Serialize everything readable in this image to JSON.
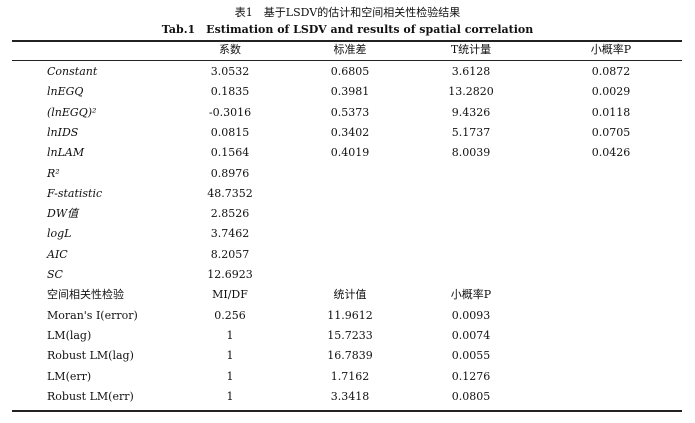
{
  "caption": {
    "cn": "表1　基于LSDV的估计和空间相关性检验结果",
    "en": "Tab.1　Estimation of LSDV and results of spatial correlation"
  },
  "table": {
    "headers": [
      "",
      "系数",
      "标准差",
      "T统计量",
      "小概率P"
    ],
    "rows": [
      [
        "Constant",
        "3.0532",
        "0.6805",
        "3.6128",
        "0.0872"
      ],
      [
        "lnEGQ",
        "0.1835",
        "0.3981",
        "13.2820",
        "0.0029"
      ],
      [
        "(lnEGQ)²",
        "-0.3016",
        "0.5373",
        "9.4326",
        "0.0118"
      ],
      [
        "lnIDS",
        "0.0815",
        "0.3402",
        "5.1737",
        "0.0705"
      ],
      [
        "lnLAM",
        "0.1564",
        "0.4019",
        "8.0039",
        "0.0426"
      ],
      [
        "R²",
        "0.8976",
        "",
        "",
        ""
      ],
      [
        "F-statistic",
        "48.7352",
        "",
        "",
        ""
      ],
      [
        "DW值",
        "2.8526",
        "",
        "",
        ""
      ],
      [
        "logL",
        "3.7462",
        "",
        "",
        ""
      ],
      [
        "AIC",
        "8.2057",
        "",
        "",
        ""
      ],
      [
        "SC",
        "12.6923",
        "",
        "",
        ""
      ]
    ],
    "subheaders": [
      "空间相关性检验",
      "MI/DF",
      "统计值",
      "小概率P",
      ""
    ],
    "test_rows": [
      [
        "Moran's I(error)",
        "0.256",
        "11.9612",
        "0.0093",
        ""
      ],
      [
        "LM(lag)",
        "1",
        "15.7233",
        "0.0074",
        ""
      ],
      [
        "Robust LM(lag)",
        "1",
        "16.7839",
        "0.0055",
        ""
      ],
      [
        "LM(err)",
        "1",
        "1.7162",
        "0.1276",
        ""
      ],
      [
        "Robust LM(err)",
        "1",
        "3.3418",
        "0.0805",
        ""
      ]
    ]
  }
}
